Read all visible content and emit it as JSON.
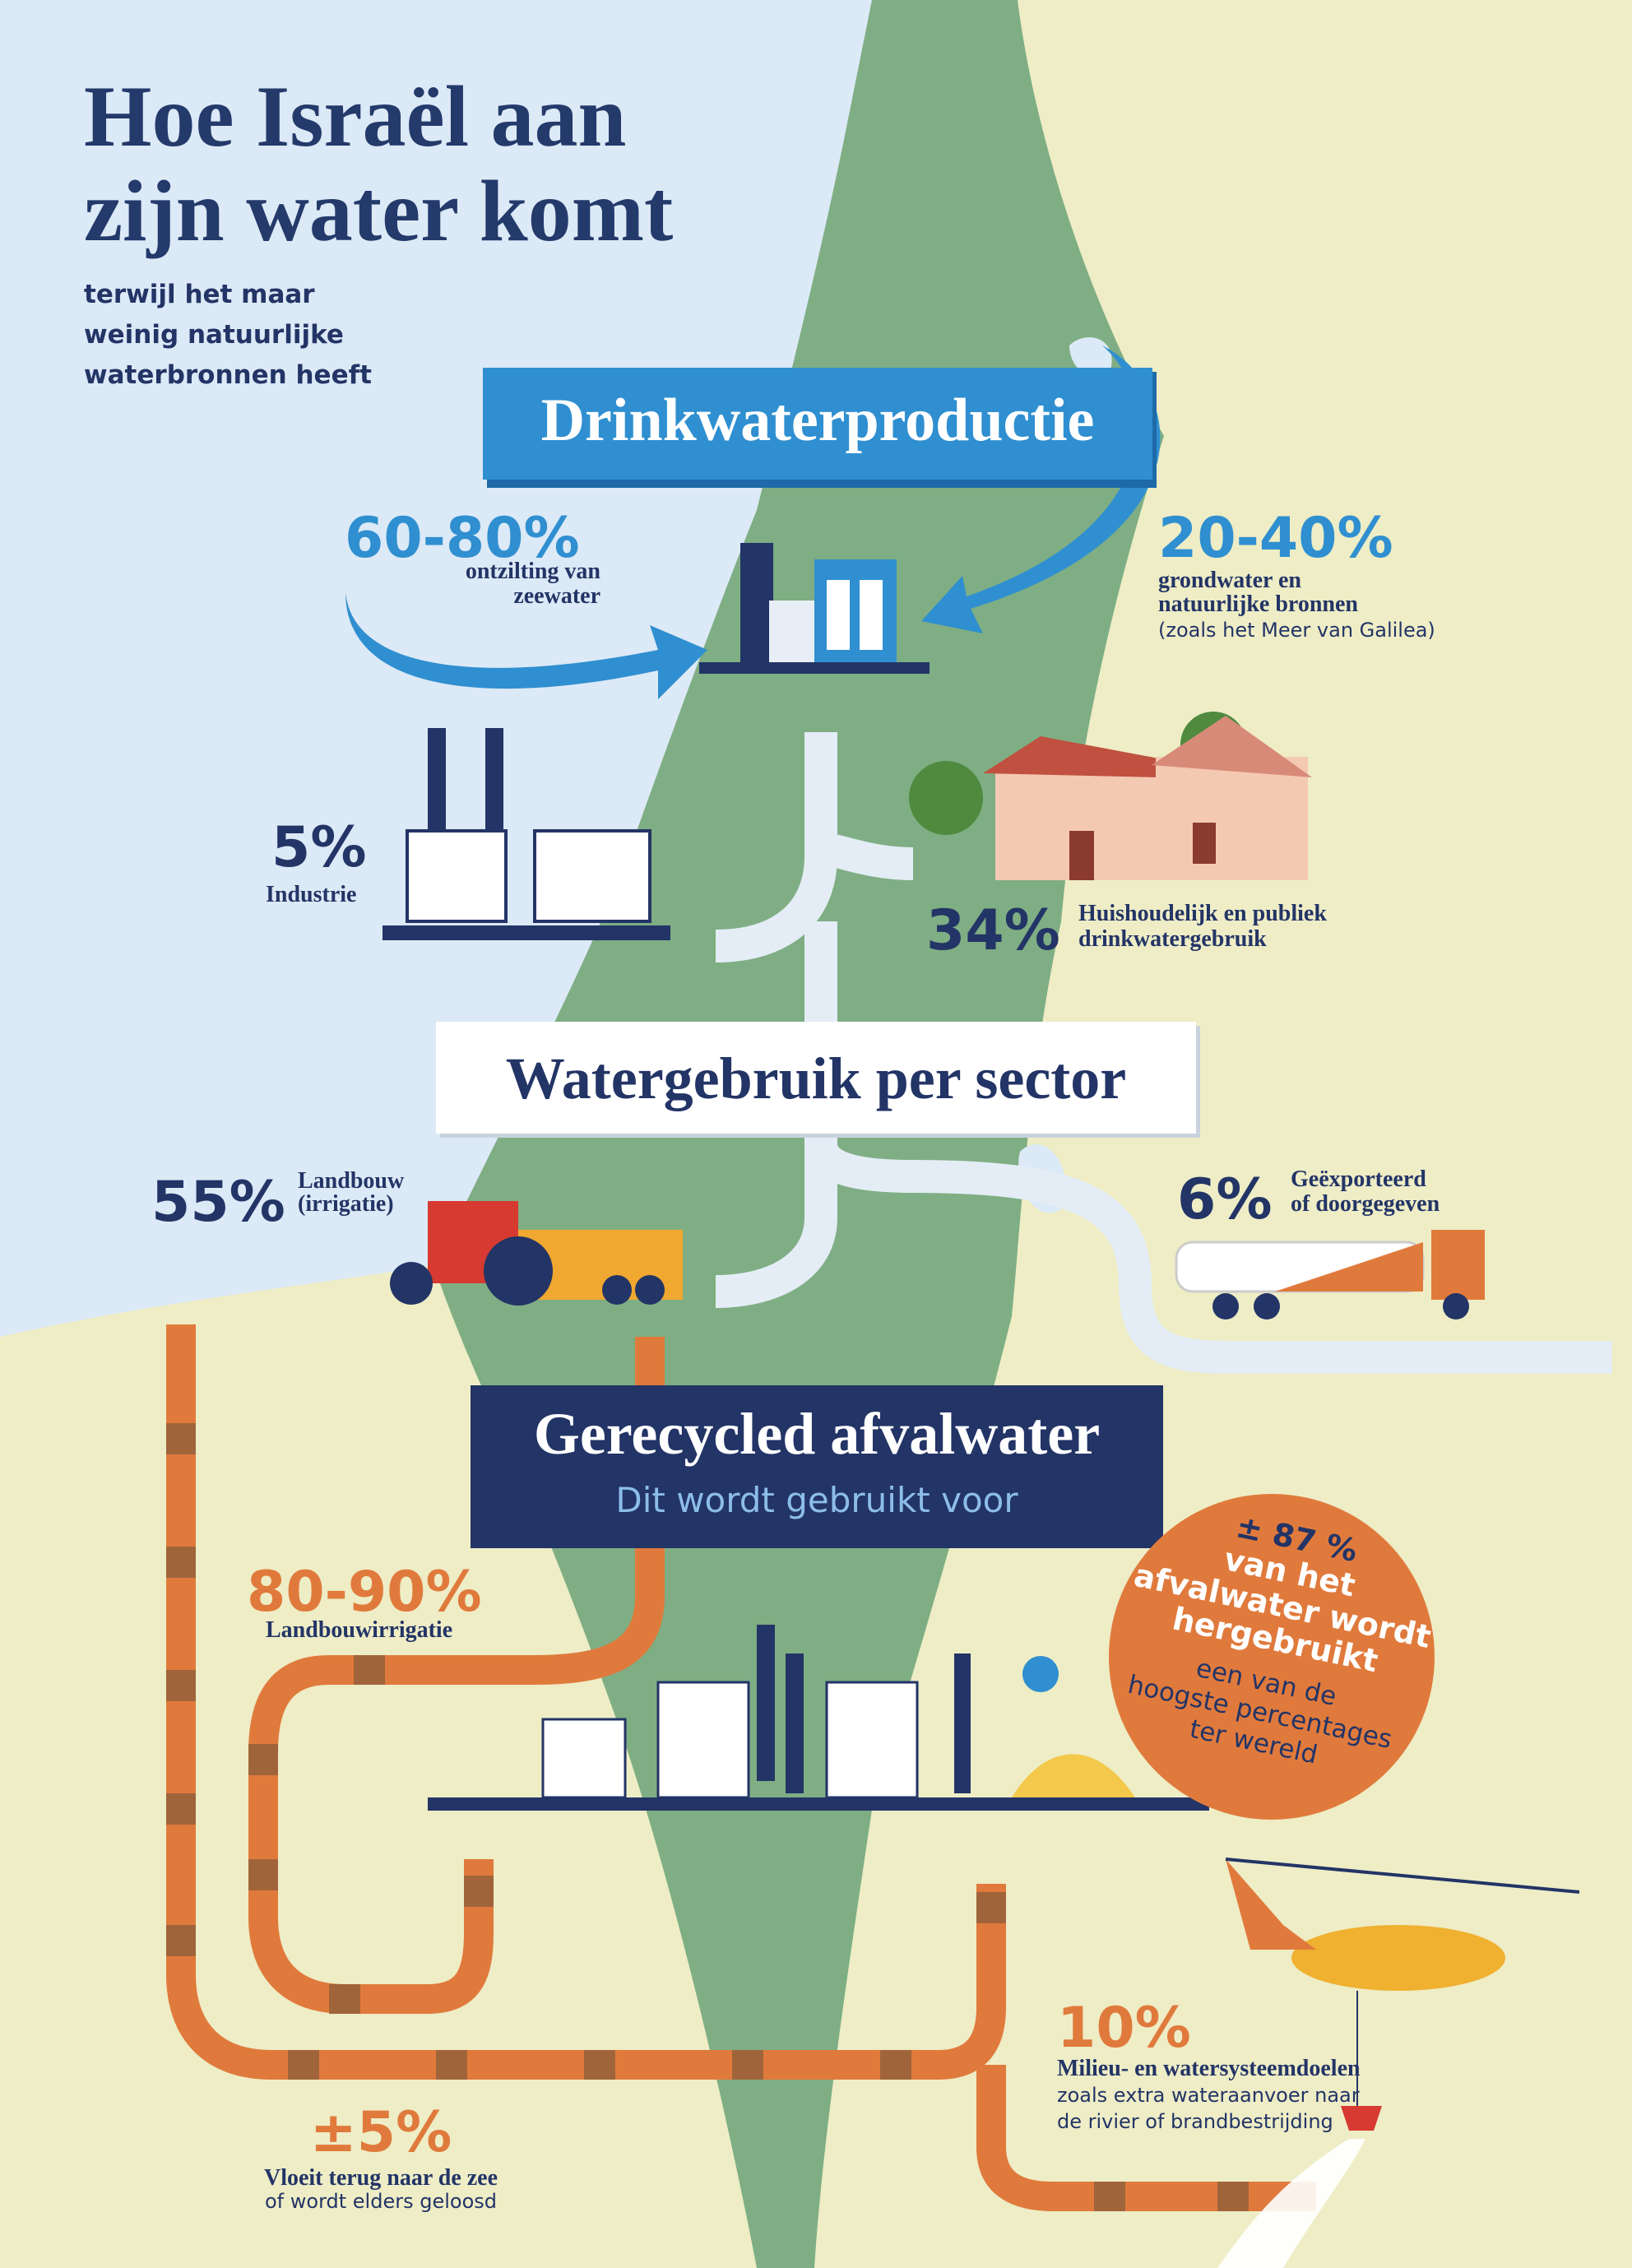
{
  "header": {
    "title_lines": [
      "Hoe Israël aan",
      "zijn water komt"
    ],
    "subtitle_lines": [
      "terwijl het maar",
      "weinig natuurlijke",
      "waterbronnen heeft"
    ]
  },
  "drinking_water": {
    "heading": "Drinkwaterproductie",
    "sources": [
      {
        "percent": "60-80%",
        "label_lines": [
          "ontzilting van",
          "zeewater"
        ]
      },
      {
        "percent": "20-40%",
        "label_lines": [
          "grondwater en",
          "natuurlijke bronnen",
          "(zoals het Meer van Galilea)"
        ]
      }
    ]
  },
  "sector_use": {
    "heading": "Watergebruik per sector",
    "items": [
      {
        "percent": "5%",
        "label_lines": [
          "Industrie"
        ]
      },
      {
        "percent": "34%",
        "label_lines": [
          "Huishoudelijk en publiek",
          "drinkwatergebruik"
        ]
      },
      {
        "percent": "55%",
        "label_lines": [
          "Landbouw",
          "(irrigatie)"
        ]
      },
      {
        "percent": "6%",
        "label_lines": [
          "Geëxporteerd",
          "of doorgegeven"
        ]
      }
    ]
  },
  "recycled": {
    "heading": "Gerecycled afvalwater",
    "subheading": "Dit wordt gebruikt voor",
    "callout": {
      "lines": [
        "± 87 %",
        "van het",
        "afvalwater wordt",
        "hergebruikt"
      ],
      "note_lines": [
        "een van de",
        "hoogste percentages",
        "ter wereld"
      ]
    },
    "uses": [
      {
        "percent": "80-90%",
        "label_lines": [
          "Landbouwirrigatie"
        ]
      },
      {
        "percent": "10%",
        "label_lines": [
          "Milieu- en watersysteemdoelen",
          "zoals extra wateraanvoer naar",
          "de rivier of brandbestrijding"
        ]
      },
      {
        "percent": "±5%",
        "label_lines": [
          "Vloeit terug naar de zee",
          "of wordt elders geloosd"
        ]
      }
    ]
  }
}
